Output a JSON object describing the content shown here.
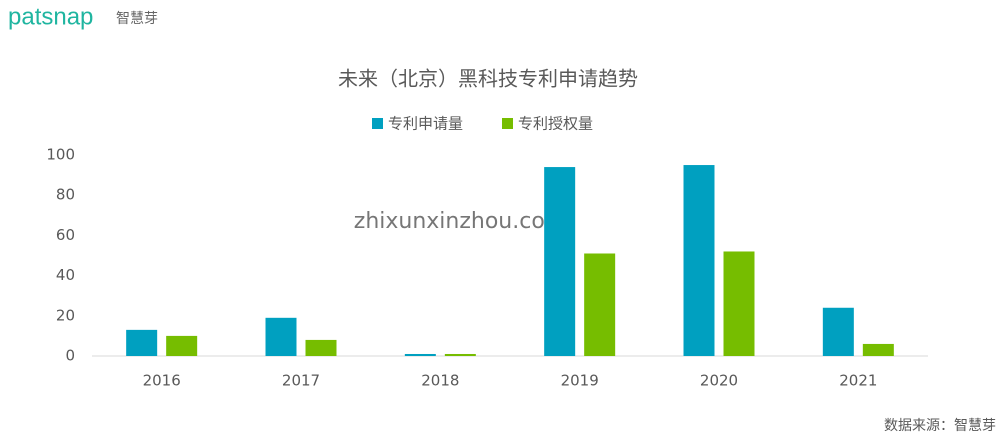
{
  "header": {
    "brand": "patsnap",
    "brand_cn": "智慧芽"
  },
  "watermark": "zhixunxinzhou.com",
  "source": "数据来源：智慧芽",
  "chart_data": {
    "type": "bar",
    "title": "未来（北京）黑科技专利申请趋势",
    "categories": [
      "2016",
      "2017",
      "2018",
      "2019",
      "2020",
      "2021"
    ],
    "series": [
      {
        "name": "专利申请量",
        "color": "#00a0c0",
        "values": [
          13,
          19,
          1,
          94,
          95,
          24
        ]
      },
      {
        "name": "专利授权量",
        "color": "#76bd00",
        "values": [
          10,
          8,
          1,
          51,
          52,
          6
        ]
      }
    ],
    "ylim": [
      0,
      100
    ],
    "yticks": [
      0,
      20,
      40,
      60,
      80,
      100
    ],
    "grid": false,
    "legend": "top"
  }
}
